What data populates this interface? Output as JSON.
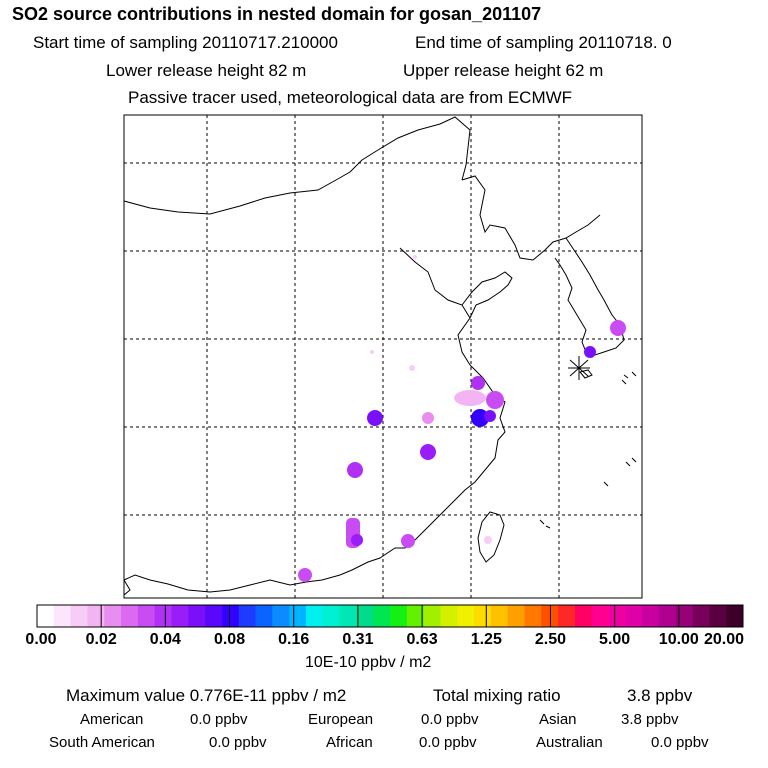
{
  "header": {
    "title": "SO2 source contributions in nested domain for gosan_201107",
    "start_sampling": "Start time of sampling 20110717.210000",
    "end_sampling": "End time of sampling 20110718.     0",
    "lower_release": "Lower release height   82 m",
    "upper_release": "Upper release height   62 m",
    "tracer_note": "Passive tracer used, meteorological data are from ECMWF"
  },
  "colorbar": {
    "tick_labels": [
      "0.00",
      "0.02",
      "0.04",
      "0.08",
      "0.16",
      "0.31",
      "0.63",
      "1.25",
      "2.50",
      "5.00",
      "10.00",
      "20.00"
    ],
    "units": "10E-10 ppbv / m2",
    "colors": [
      "#ffffff",
      "#fbe6fb",
      "#f7cdf7",
      "#f2b4f2",
      "#e88ef0",
      "#dc6af0",
      "#c84cf2",
      "#b030f6",
      "#9a1cf8",
      "#7a10fa",
      "#5a08fc",
      "#3400ff",
      "#1e3cff",
      "#0a64ff",
      "#0a8cff",
      "#00b4ff",
      "#00f0f0",
      "#00f0d2",
      "#00e6b4",
      "#00dc8c",
      "#00e650",
      "#14f014",
      "#64f000",
      "#a0f000",
      "#d2f000",
      "#f0f000",
      "#ffdc00",
      "#ffc000",
      "#ffa000",
      "#ff7800",
      "#ff5000",
      "#ff2828",
      "#ff0064",
      "#ff0090",
      "#f000a0",
      "#e000a8",
      "#c800a0",
      "#b00090",
      "#960078",
      "#78005a",
      "#5a0040",
      "#3c0028"
    ]
  },
  "stats": {
    "max_value": "Maximum value  0.776E-11 ppbv / m2",
    "total_label": "Total mixing ratio",
    "total_value": "3.8 ppbv"
  },
  "regions": [
    {
      "name": "American",
      "value": "0.0 ppbv"
    },
    {
      "name": "European",
      "value": "0.0 ppbv"
    },
    {
      "name": "Asian",
      "value": "3.8 ppbv"
    },
    {
      "name": "South American",
      "value": "0.0 ppbv"
    },
    {
      "name": "African",
      "value": "0.0 ppbv"
    },
    {
      "name": "Australian",
      "value": "0.0 ppbv"
    }
  ]
}
